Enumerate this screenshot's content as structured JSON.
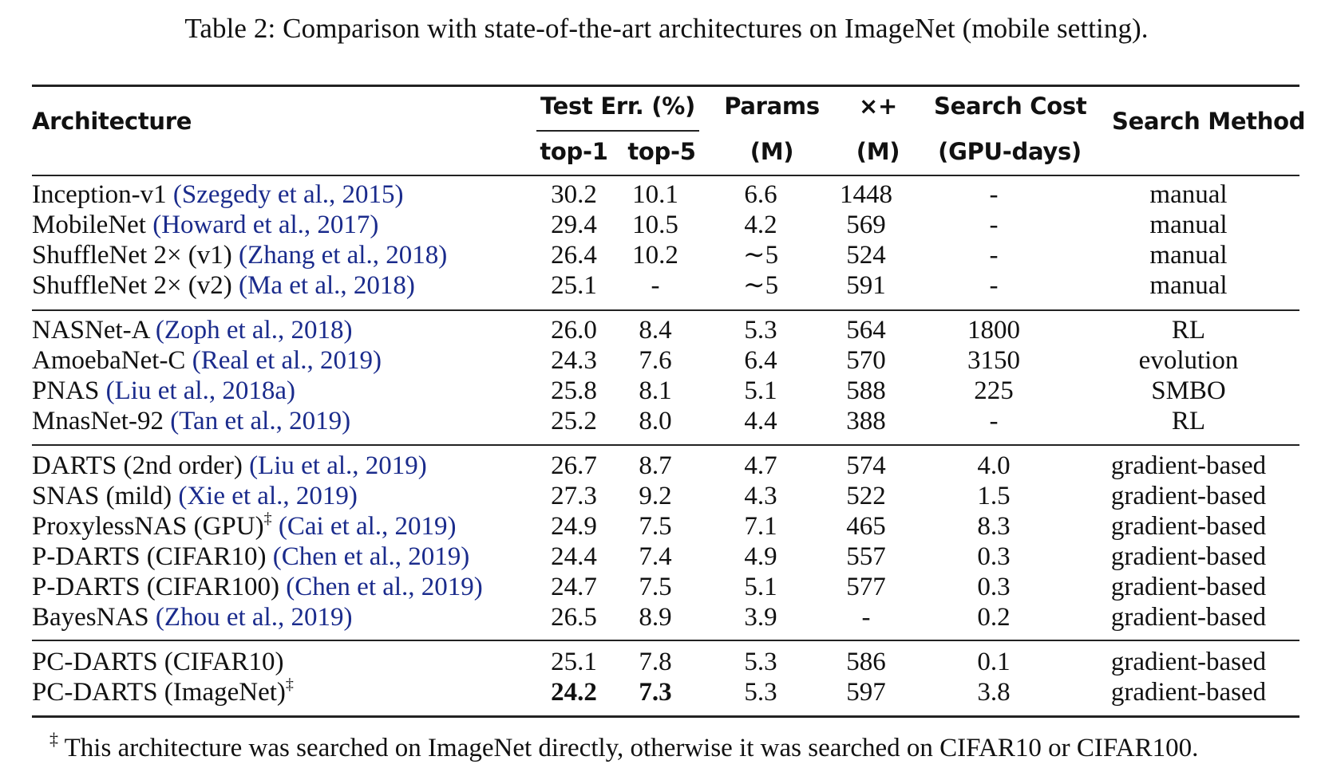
{
  "caption": "Table 2: Comparison with state-of-the-art architectures on ImageNet (mobile setting).",
  "header": {
    "architecture": "Architecture",
    "test_err": "Test Err. (%)",
    "top1": "top-1",
    "top5": "top-5",
    "params": "Params",
    "params_unit": "(M)",
    "multadds": "×+",
    "multadds_unit": "(M)",
    "search_cost": "Search Cost",
    "search_cost_unit": "(GPU-days)",
    "search_method": "Search Method"
  },
  "groups": [
    [
      {
        "name": "Inception-v1 ",
        "cite": "(Szegedy et al., 2015)",
        "sup": "",
        "top1": "30.2",
        "top5": "10.1",
        "params": "6.6",
        "ops": "1448",
        "cost": "-",
        "method": "manual"
      },
      {
        "name": "MobileNet ",
        "cite": "(Howard et al., 2017)",
        "sup": "",
        "top1": "29.4",
        "top5": "10.5",
        "params": "4.2",
        "ops": "569",
        "cost": "-",
        "method": "manual"
      },
      {
        "name": "ShuffleNet 2× (v1) ",
        "cite": "(Zhang et al., 2018)",
        "sup": "",
        "top1": "26.4",
        "top5": "10.2",
        "params": "∼5",
        "ops": "524",
        "cost": "-",
        "method": "manual"
      },
      {
        "name": "ShuffleNet 2× (v2) ",
        "cite": "(Ma et al., 2018)",
        "sup": "",
        "top1": "25.1",
        "top5": "-",
        "params": "∼5",
        "ops": "591",
        "cost": "-",
        "method": "manual"
      }
    ],
    [
      {
        "name": "NASNet-A ",
        "cite": "(Zoph et al., 2018)",
        "sup": "",
        "top1": "26.0",
        "top5": "8.4",
        "params": "5.3",
        "ops": "564",
        "cost": "1800",
        "method": "RL"
      },
      {
        "name": "AmoebaNet-C ",
        "cite": "(Real et al., 2019)",
        "sup": "",
        "top1": "24.3",
        "top5": "7.6",
        "params": "6.4",
        "ops": "570",
        "cost": "3150",
        "method": "evolution"
      },
      {
        "name": "PNAS ",
        "cite": "(Liu et al., 2018a)",
        "sup": "",
        "top1": "25.8",
        "top5": "8.1",
        "params": "5.1",
        "ops": "588",
        "cost": "225",
        "method": "SMBO"
      },
      {
        "name": "MnasNet-92 ",
        "cite": "(Tan et al., 2019)",
        "sup": "",
        "top1": "25.2",
        "top5": "8.0",
        "params": "4.4",
        "ops": "388",
        "cost": "-",
        "method": "RL"
      }
    ],
    [
      {
        "name": "DARTS (2nd order) ",
        "cite": "(Liu et al., 2019)",
        "sup": "",
        "top1": "26.7",
        "top5": "8.7",
        "params": "4.7",
        "ops": "574",
        "cost": "4.0",
        "method": "gradient-based"
      },
      {
        "name": "SNAS (mild) ",
        "cite": "(Xie et al., 2019)",
        "sup": "",
        "top1": "27.3",
        "top5": "9.2",
        "params": "4.3",
        "ops": "522",
        "cost": "1.5",
        "method": "gradient-based"
      },
      {
        "name": "ProxylessNAS (GPU)",
        "cite": "(Cai et al., 2019)",
        "sup": "‡",
        "top1": "24.9",
        "top5": "7.5",
        "params": "7.1",
        "ops": "465",
        "cost": "8.3",
        "method": "gradient-based"
      },
      {
        "name": "P-DARTS (CIFAR10) ",
        "cite": "(Chen et al., 2019)",
        "sup": "",
        "top1": "24.4",
        "top5": "7.4",
        "params": "4.9",
        "ops": "557",
        "cost": "0.3",
        "method": "gradient-based"
      },
      {
        "name": "P-DARTS (CIFAR100) ",
        "cite": "(Chen et al., 2019)",
        "sup": "",
        "top1": "24.7",
        "top5": "7.5",
        "params": "5.1",
        "ops": "577",
        "cost": "0.3",
        "method": "gradient-based"
      },
      {
        "name": "BayesNAS ",
        "cite": "(Zhou et al., 2019)",
        "sup": "",
        "top1": "26.5",
        "top5": "8.9",
        "params": "3.9",
        "ops": "-",
        "cost": "0.2",
        "method": "gradient-based"
      }
    ],
    [
      {
        "name": "PC-DARTS (CIFAR10)",
        "cite": "",
        "sup": "",
        "top1": "25.1",
        "top5": "7.8",
        "params": "5.3",
        "ops": "586",
        "cost": "0.1",
        "method": "gradient-based"
      },
      {
        "name": "PC-DARTS (ImageNet)",
        "cite": "",
        "sup": "‡",
        "top1": "24.2",
        "top5": "7.3",
        "params": "5.3",
        "ops": "597",
        "cost": "3.8",
        "method": "gradient-based",
        "bold": true
      }
    ]
  ],
  "footnote": {
    "mark": "‡",
    "text": " This architecture was searched on ImageNet directly, otherwise it was searched on CIFAR10 or CIFAR100."
  }
}
